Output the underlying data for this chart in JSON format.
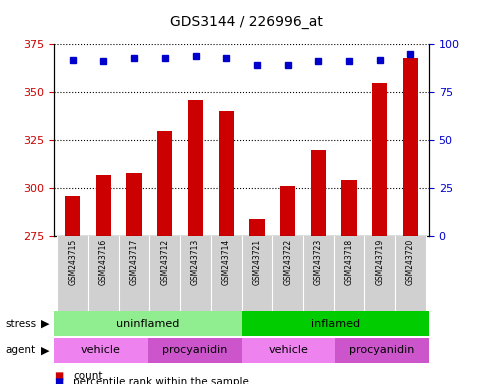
{
  "title": "GDS3144 / 226996_at",
  "samples": [
    "GSM243715",
    "GSM243716",
    "GSM243717",
    "GSM243712",
    "GSM243713",
    "GSM243714",
    "GSM243721",
    "GSM243722",
    "GSM243723",
    "GSM243718",
    "GSM243719",
    "GSM243720"
  ],
  "counts": [
    296,
    307,
    308,
    330,
    346,
    340,
    284,
    301,
    320,
    304,
    355,
    368
  ],
  "percentile_ranks": [
    92,
    91,
    93,
    93,
    94,
    93,
    89,
    89,
    91,
    91,
    92,
    95
  ],
  "ylim_left": [
    275,
    375
  ],
  "ylim_right": [
    0,
    100
  ],
  "yticks_left": [
    275,
    300,
    325,
    350,
    375
  ],
  "yticks_right": [
    0,
    25,
    50,
    75,
    100
  ],
  "bar_color": "#cc0000",
  "dot_color": "#0000cc",
  "stress_groups": [
    {
      "label": "uninflamed",
      "start": 0,
      "end": 6,
      "color": "#90ee90"
    },
    {
      "label": "inflamed",
      "start": 6,
      "end": 12,
      "color": "#00cc00"
    }
  ],
  "agent_groups": [
    {
      "label": "vehicle",
      "start": 0,
      "end": 3,
      "color": "#ee82ee"
    },
    {
      "label": "procyanidin",
      "start": 3,
      "end": 6,
      "color": "#cc55cc"
    },
    {
      "label": "vehicle",
      "start": 6,
      "end": 9,
      "color": "#ee82ee"
    },
    {
      "label": "procyanidin",
      "start": 9,
      "end": 12,
      "color": "#cc55cc"
    }
  ],
  "background_color": "#ffffff",
  "tick_color_left": "#cc0000",
  "tick_color_right": "#0000cc",
  "legend_items": [
    {
      "color": "#cc0000",
      "label": "count"
    },
    {
      "color": "#0000cc",
      "label": "percentile rank within the sample"
    }
  ]
}
